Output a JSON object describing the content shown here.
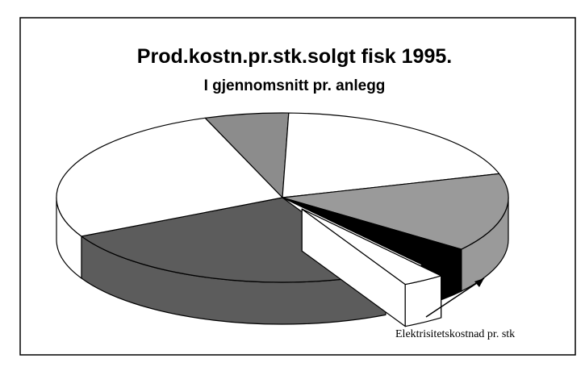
{
  "chart_data": {
    "type": "pie3d",
    "title": "Prod.kostn.pr.stk.solgt fisk 1995.",
    "subtitle": "I gjennomsnitt pr. anlegg",
    "annotation": "Elektrisitetskostnad pr. stk",
    "values": [
      6,
      20,
      15,
      4,
      3,
      25,
      27
    ],
    "colors": [
      "#8c8c8c",
      "#ffffff",
      "#9a9a9a",
      "#000000",
      "#ffffff",
      "#5c5c5c",
      "#ffffff"
    ],
    "exploded_slice": 4
  }
}
